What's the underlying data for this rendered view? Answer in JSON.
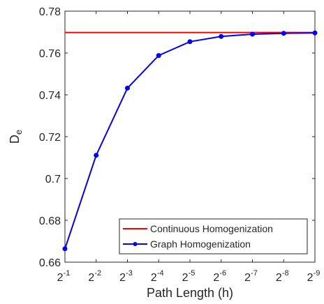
{
  "chart_data": {
    "type": "line",
    "xlabel": "Path Length (h)",
    "ylabel_main": "D",
    "ylabel_sub": "e",
    "x_ticks": [
      {
        "base": "2",
        "exp": "-1"
      },
      {
        "base": "2",
        "exp": "-2"
      },
      {
        "base": "2",
        "exp": "-3"
      },
      {
        "base": "2",
        "exp": "-4"
      },
      {
        "base": "2",
        "exp": "-5"
      },
      {
        "base": "2",
        "exp": "-6"
      },
      {
        "base": "2",
        "exp": "-7"
      },
      {
        "base": "2",
        "exp": "-8"
      },
      {
        "base": "2",
        "exp": "-9"
      }
    ],
    "x": [
      1,
      2,
      3,
      4,
      5,
      6,
      7,
      8,
      9
    ],
    "xlim": [
      1,
      9
    ],
    "ylim": [
      0.66,
      0.78
    ],
    "y_ticks": [
      "0.66",
      "0.68",
      "0.7",
      "0.72",
      "0.74",
      "0.76",
      "0.78"
    ],
    "grid": false,
    "legend_position": "bottom-right",
    "series": [
      {
        "name": "Continuous Homogenization",
        "color": "#ff0000",
        "marker": "none",
        "values": [
          0.7698,
          0.7698,
          0.7698,
          0.7698,
          0.7698,
          0.7698,
          0.7698,
          0.7698,
          0.7698
        ]
      },
      {
        "name": "Graph Homogenization",
        "color": "#0000ff",
        "marker": "circle",
        "values": [
          0.6664,
          0.7111,
          0.7432,
          0.7588,
          0.7654,
          0.7679,
          0.769,
          0.7694,
          0.7696
        ]
      }
    ]
  }
}
